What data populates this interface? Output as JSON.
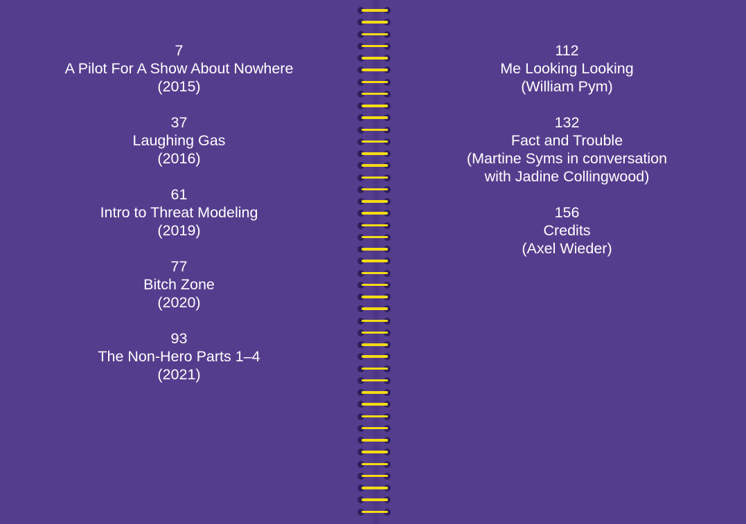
{
  "left_page": {
    "entries": [
      {
        "page": "7",
        "title": "A Pilot For A Show About Nowhere",
        "sub": "(2015)"
      },
      {
        "page": "37",
        "title": "Laughing Gas",
        "sub": "(2016)"
      },
      {
        "page": "61",
        "title": "Intro to Threat Modeling",
        "sub": "(2019)"
      },
      {
        "page": "77",
        "title": "Bitch Zone",
        "sub": "(2020)"
      },
      {
        "page": "93",
        "title": "The Non-Hero Parts 1–4",
        "sub": "(2021)"
      }
    ]
  },
  "right_page": {
    "entries": [
      {
        "page": "112",
        "title": "Me Looking Looking",
        "sub": "(William Pym)"
      },
      {
        "page": "132",
        "title": "Fact and Trouble",
        "sub": "(Martine Syms in conversation",
        "sub2": "with Jadine Collingwood)"
      },
      {
        "page": "156",
        "title": "Credits",
        "sub": "(Axel Wieder)"
      }
    ]
  },
  "colors": {
    "background": "#553d8e",
    "wire": "#f5dc12",
    "text": "#ffffff"
  }
}
